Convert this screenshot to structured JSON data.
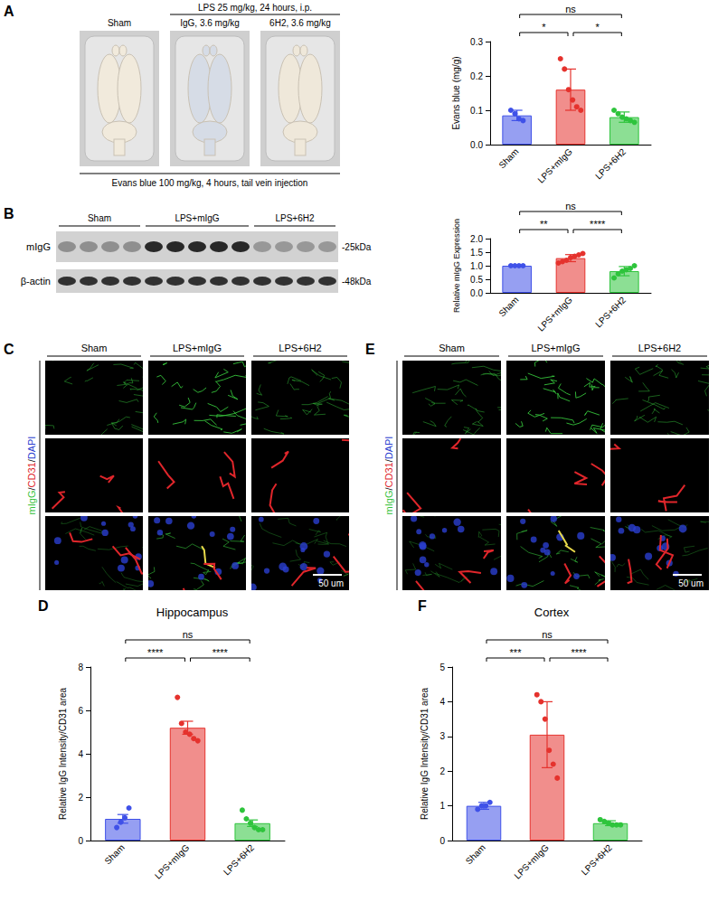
{
  "figure": {
    "panel_A": {
      "letter": "A",
      "treatment": "LPS 25 mg/kg, 24 hours, i.p.",
      "groups": [
        "Sham",
        "IgG, 3.6 mg/kg",
        "6H2, 3.6 mg/kg"
      ],
      "injection": "Evans blue 100 mg/kg, 4 hours, tail vein injection"
    },
    "panel_B": {
      "letter": "B",
      "groups": [
        "Sham",
        "LPS+mIgG",
        "LPS+6H2"
      ],
      "rows": [
        {
          "protein": "mIgG",
          "size": "-25kDa"
        },
        {
          "protein": "β-actin",
          "size": "-48kDa"
        }
      ]
    },
    "panel_C": {
      "letter": "C",
      "groups": [
        "Sham",
        "LPS+mIgG",
        "LPS+6H2"
      ],
      "stain": "mIgG/CD31/DAPI",
      "colors": [
        "#35c23b",
        "#e0262b",
        "#2b3fd0"
      ],
      "scale_bar": "50 um"
    },
    "panel_E": {
      "letter": "E",
      "groups": [
        "Sham",
        "LPS+mIgG",
        "LPS+6H2"
      ],
      "stain": "mIgG/CD31/DAPI",
      "colors": [
        "#35c23b",
        "#e0262b",
        "#2b3fd0"
      ],
      "scale_bar": "50 um"
    }
  },
  "chart_data": [
    {
      "type": "bar",
      "y_label": "Evans blue (mg/g)",
      "categories": [
        "Sham",
        "LPS+mIgG",
        "LPS+6H2"
      ],
      "values": [
        0.085,
        0.16,
        0.08
      ],
      "errors": [
        0.015,
        0.06,
        0.015
      ],
      "points": [
        [
          0.1,
          0.09,
          0.075,
          0.07
        ],
        [
          0.25,
          0.22,
          0.16,
          0.13,
          0.11,
          0.1
        ],
        [
          0.1,
          0.09,
          0.08,
          0.075,
          0.07,
          0.065
        ]
      ],
      "colors": [
        "#3f51e8",
        "#e5322d",
        "#2ec43c"
      ],
      "ylim": [
        0,
        0.3
      ],
      "yticks": [
        {
          "value": 0,
          "label": "0.0"
        },
        0.1,
        0.2,
        0.3
      ],
      "grid": false,
      "comparisons": [
        {
          "groups": [
            "Sham",
            "LPS+mIgG"
          ],
          "label": "*"
        },
        {
          "groups": [
            "LPS+mIgG",
            "LPS+6H2"
          ],
          "label": "*"
        },
        {
          "groups": [
            "Sham",
            "LPS+6H2"
          ],
          "label": "ns"
        }
      ]
    },
    {
      "type": "bar",
      "y_label": "Relative mIgG Expression",
      "categories": [
        "Sham",
        "LPS+mIgG",
        "LPS+6H2"
      ],
      "values": [
        1.0,
        1.28,
        0.8
      ],
      "errors": [
        0.01,
        0.13,
        0.17
      ],
      "points": [
        [
          1.0,
          1.0,
          1.0,
          1.0
        ],
        [
          1.1,
          1.15,
          1.2,
          1.3,
          1.35,
          1.4,
          1.45
        ],
        [
          0.55,
          0.7,
          0.8,
          0.85,
          0.9,
          1.0
        ]
      ],
      "colors": [
        "#3f51e8",
        "#e5322d",
        "#2ec43c"
      ],
      "ylim": [
        0,
        2
      ],
      "yticks": [
        {
          "value": 0,
          "label": "0.0"
        },
        0.5,
        {
          "value": 1,
          "label": "1.0"
        },
        1.5,
        {
          "value": 2,
          "label": "2.0"
        }
      ],
      "grid": false,
      "comparisons": [
        {
          "groups": [
            "Sham",
            "LPS+mIgG"
          ],
          "label": "**"
        },
        {
          "groups": [
            "LPS+mIgG",
            "LPS+6H2"
          ],
          "label": "****"
        },
        {
          "groups": [
            "Sham",
            "LPS+6H2"
          ],
          "label": "ns"
        }
      ]
    },
    {
      "type": "bar",
      "panel": "D",
      "title": "Hippocampus",
      "y_label": "Relative IgG Intensity/CD31 area",
      "categories": [
        "Sham",
        "LPS+mIgG",
        "LPS+6H2"
      ],
      "values": [
        1.0,
        5.2,
        0.8
      ],
      "errors": [
        0.2,
        0.3,
        0.15
      ],
      "points": [
        [
          0.6,
          0.85,
          1.05,
          1.5
        ],
        [
          6.6,
          5.4,
          5.0,
          4.9,
          4.7,
          4.6
        ],
        [
          1.4,
          1.0,
          0.8,
          0.6,
          0.5,
          0.5
        ]
      ],
      "colors": [
        "#3f51e8",
        "#e5322d",
        "#2ec43c"
      ],
      "ylim": [
        0,
        8
      ],
      "yticks": [
        0,
        2,
        4,
        6,
        8
      ],
      "grid": false,
      "comparisons": [
        {
          "groups": [
            "Sham",
            "LPS+mIgG"
          ],
          "label": "****"
        },
        {
          "groups": [
            "LPS+mIgG",
            "LPS+6H2"
          ],
          "label": "****"
        },
        {
          "groups": [
            "Sham",
            "LPS+6H2"
          ],
          "label": "ns"
        }
      ]
    },
    {
      "type": "bar",
      "panel": "F",
      "title": "Cortex",
      "y_label": "Relative IgG Intensity/CD31 area",
      "categories": [
        "Sham",
        "LPS+mIgG",
        "LPS+6H2"
      ],
      "values": [
        1.0,
        3.05,
        0.5
      ],
      "errors": [
        0.1,
        0.95,
        0.07
      ],
      "points": [
        [
          0.9,
          1.0,
          1.0,
          1.1
        ],
        [
          4.2,
          4.0,
          3.5,
          2.6,
          2.2,
          1.8
        ],
        [
          0.6,
          0.55,
          0.5,
          0.45,
          0.45,
          0.45
        ]
      ],
      "colors": [
        "#3f51e8",
        "#e5322d",
        "#2ec43c"
      ],
      "ylim": [
        0,
        5
      ],
      "yticks": [
        0,
        1,
        2,
        3,
        4,
        5
      ],
      "grid": false,
      "comparisons": [
        {
          "groups": [
            "Sham",
            "LPS+mIgG"
          ],
          "label": "***"
        },
        {
          "groups": [
            "LPS+mIgG",
            "LPS+6H2"
          ],
          "label": "****"
        },
        {
          "groups": [
            "Sham",
            "LPS+6H2"
          ],
          "label": "ns"
        }
      ]
    }
  ]
}
